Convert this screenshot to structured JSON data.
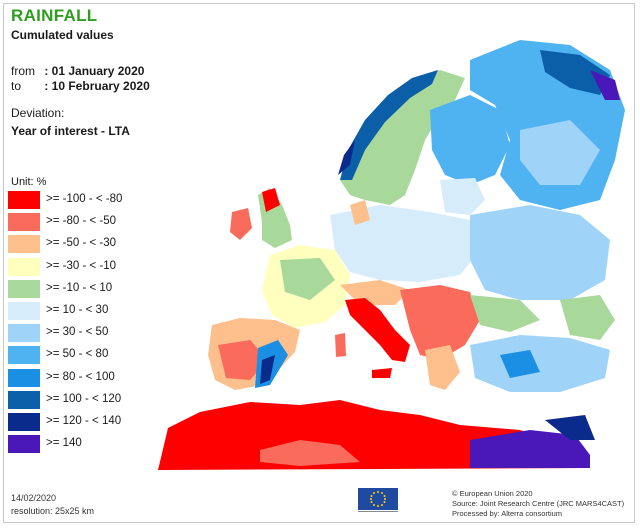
{
  "header": {
    "title": "RAINFALL",
    "subtitle": "Cumulated values",
    "from_label": "from",
    "from_value": ": 01 January 2020",
    "to_label": "to",
    "to_value": ": 10 February 2020",
    "deviation_label": "Deviation:",
    "deviation_value": "Year of interest - LTA"
  },
  "legend": {
    "unit": "Unit:  %",
    "items": [
      {
        "label": ">= -100 - < -80",
        "color": "#ff0000"
      },
      {
        "label": ">= -80 - < -50",
        "color": "#fa6b5b"
      },
      {
        "label": ">= -50 - < -30",
        "color": "#fdbf8c"
      },
      {
        "label": ">= -30 - < -10",
        "color": "#ffffbe"
      },
      {
        "label": ">= -10 - < 10",
        "color": "#a8d89a"
      },
      {
        "label": ">= 10 - < 30",
        "color": "#d7ecfb"
      },
      {
        "label": ">= 30 - < 50",
        "color": "#9fd3f7"
      },
      {
        "label": ">= 50 - < 80",
        "color": "#4fb3f2"
      },
      {
        "label": ">= 80 - < 100",
        "color": "#1a8fe3"
      },
      {
        "label": ">= 100 - < 120",
        "color": "#0b5fa8"
      },
      {
        "label": ">= 120 - < 140",
        "color": "#0a2a8c"
      },
      {
        "label": ">= 140",
        "color": "#4a18b8"
      }
    ]
  },
  "footer": {
    "date": "14/02/2020",
    "resolution": "resolution:  25x25 km",
    "copyright": "© European Union 2020",
    "source": "Source: Joint Research Centre (JRC MARS4CAST)",
    "processed": "Processed by: Alterra consortium"
  }
}
